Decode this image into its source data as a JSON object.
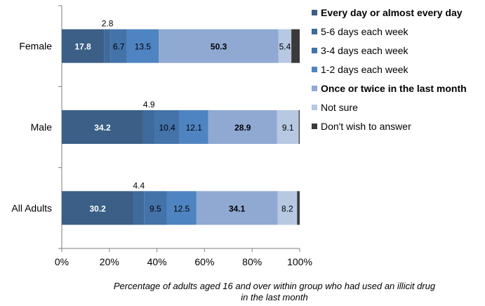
{
  "chart_data": {
    "type": "bar",
    "orientation": "horizontal",
    "stacked": true,
    "categories": [
      "Female",
      "Male",
      "All Adults"
    ],
    "series": [
      {
        "name": "Every day or almost every day",
        "color": "#3b5f86",
        "bold": true,
        "values": [
          17.8,
          34.2,
          30.2
        ]
      },
      {
        "name": "5-6 days each week",
        "color": "#3e6a9c",
        "bold": false,
        "values": [
          2.8,
          4.9,
          4.4
        ]
      },
      {
        "name": "3-4 days each week",
        "color": "#4473aa",
        "bold": false,
        "values": [
          6.7,
          10.4,
          9.5
        ]
      },
      {
        "name": "1-2 days each week",
        "color": "#4f84c2",
        "bold": false,
        "values": [
          13.5,
          12.1,
          12.5
        ]
      },
      {
        "name": "Once or twice in the last month",
        "color": "#8fa9d2",
        "bold": true,
        "values": [
          50.3,
          28.9,
          34.1
        ]
      },
      {
        "name": "Not sure",
        "color": "#b7c8e3",
        "bold": false,
        "values": [
          5.4,
          9.1,
          8.2
        ]
      },
      {
        "name": "Don't wish to answer",
        "color": "#3a3a3a",
        "bold": false,
        "values": [
          3.5,
          0.4,
          1.1
        ]
      }
    ],
    "data_labels": {
      "shown_series": [
        0,
        1,
        2,
        3,
        4,
        5
      ],
      "outside_series": [
        1
      ]
    },
    "xlim": [
      0,
      100
    ],
    "x_ticks": [
      "0%",
      "20%",
      "40%",
      "60%",
      "80%",
      "100%"
    ],
    "xlabel": "Percentage of adults aged 16 and over within group who had used an illicit drug in the last month",
    "xlabel_lines": [
      "Percentage of adults aged 16 and over within group who had used an illicit drug",
      "in the last month"
    ],
    "legend_position": "right",
    "grid": false
  }
}
